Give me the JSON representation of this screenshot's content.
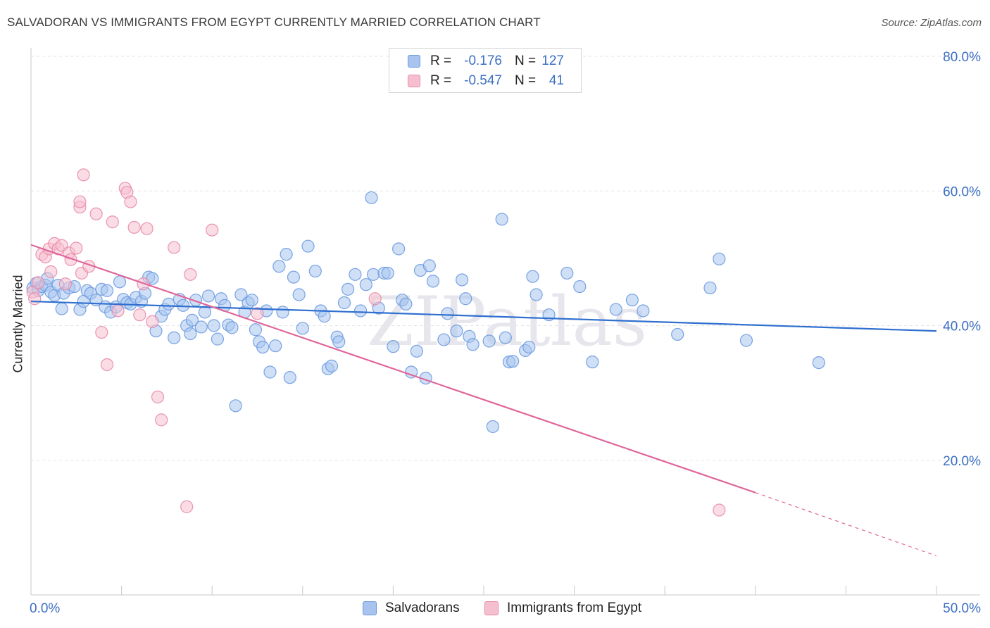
{
  "title": "SALVADORAN VS IMMIGRANTS FROM EGYPT CURRENTLY MARRIED CORRELATION CHART",
  "source": "Source: ZipAtlas.com",
  "watermark": "ZIPatlas",
  "legend_top": {
    "rows": [
      {
        "r_label": "R =",
        "r_value": "-0.176",
        "n_label": "N =",
        "n_value": "127",
        "color": "#a8c4ee",
        "border": "#6b9ae0"
      },
      {
        "r_label": "R =",
        "r_value": "-0.547",
        "n_label": "N =",
        "n_value": "41",
        "color": "#f6bfd0",
        "border": "#e88aa8"
      }
    ]
  },
  "legend_bottom": [
    {
      "label": "Salvadorans",
      "color": "#a8c4ee",
      "border": "#6b9ae0"
    },
    {
      "label": "Immigrants from Egypt",
      "color": "#f6bfd0",
      "border": "#e88aa8"
    }
  ],
  "chart_data": {
    "type": "scatter",
    "xlabel": "",
    "ylabel": "Currently Married",
    "xlim": [
      0,
      50
    ],
    "ylim": [
      0,
      80
    ],
    "x_tick_labels": [
      {
        "value": 0,
        "label": "0.0%"
      },
      {
        "value": 50,
        "label": "50.0%"
      }
    ],
    "y_tick_labels": [
      {
        "value": 20,
        "label": "20.0%"
      },
      {
        "value": 40,
        "label": "40.0%"
      },
      {
        "value": 60,
        "label": "60.0%"
      },
      {
        "value": 80,
        "label": "80.0%"
      }
    ],
    "grid": true,
    "legend": "top-center",
    "colors": {
      "blue_point": "#a8c4ee",
      "blue_edge": "#6b9ae0",
      "blue_line": "#2f6fcf",
      "pink_point": "#f6bfd0",
      "pink_edge": "#e88aa8",
      "pink_line": "#e0679a",
      "tick_label": "#3b6fc4",
      "grid": "#e3e3e3"
    },
    "series": [
      {
        "name": "Salvadorans",
        "trend": {
          "x": [
            0,
            50
          ],
          "y": [
            43.6,
            39.2
          ],
          "dashed_from": null
        },
        "points": [
          [
            0.1,
            45.6
          ],
          [
            0.3,
            46.3
          ],
          [
            0.4,
            45.2
          ],
          [
            0.6,
            45.8
          ],
          [
            0.8,
            46.0
          ],
          [
            0.9,
            47.0
          ],
          [
            1.1,
            45.0
          ],
          [
            1.3,
            44.5
          ],
          [
            1.5,
            46.0
          ],
          [
            1.7,
            42.5
          ],
          [
            1.8,
            44.8
          ],
          [
            2.1,
            45.6
          ],
          [
            2.4,
            45.8
          ],
          [
            2.7,
            42.4
          ],
          [
            2.9,
            43.6
          ],
          [
            3.1,
            45.2
          ],
          [
            3.3,
            44.8
          ],
          [
            3.6,
            43.8
          ],
          [
            3.9,
            45.4
          ],
          [
            4.1,
            42.8
          ],
          [
            4.2,
            45.2
          ],
          [
            4.4,
            42.0
          ],
          [
            4.7,
            42.8
          ],
          [
            4.9,
            46.5
          ],
          [
            5.1,
            43.9
          ],
          [
            5.3,
            43.4
          ],
          [
            5.5,
            43.2
          ],
          [
            5.8,
            44.2
          ],
          [
            6.1,
            43.6
          ],
          [
            6.3,
            44.8
          ],
          [
            6.5,
            47.2
          ],
          [
            6.7,
            47.0
          ],
          [
            6.9,
            39.2
          ],
          [
            7.2,
            41.4
          ],
          [
            7.4,
            42.4
          ],
          [
            7.6,
            43.2
          ],
          [
            7.9,
            38.2
          ],
          [
            8.2,
            43.9
          ],
          [
            8.4,
            43.0
          ],
          [
            8.6,
            40.0
          ],
          [
            8.8,
            38.8
          ],
          [
            8.9,
            40.8
          ],
          [
            9.1,
            43.8
          ],
          [
            9.4,
            39.8
          ],
          [
            9.6,
            42.0
          ],
          [
            9.8,
            44.4
          ],
          [
            10.1,
            40.0
          ],
          [
            10.3,
            38.0
          ],
          [
            10.5,
            44.0
          ],
          [
            10.7,
            43.0
          ],
          [
            10.9,
            40.1
          ],
          [
            11.1,
            39.7
          ],
          [
            11.3,
            28.1
          ],
          [
            11.6,
            44.6
          ],
          [
            11.8,
            42.0
          ],
          [
            12.0,
            43.4
          ],
          [
            12.2,
            43.8
          ],
          [
            12.4,
            39.4
          ],
          [
            12.6,
            37.6
          ],
          [
            12.8,
            36.8
          ],
          [
            13.0,
            42.2
          ],
          [
            13.2,
            33.1
          ],
          [
            13.5,
            37.0
          ],
          [
            13.7,
            48.8
          ],
          [
            13.9,
            42.0
          ],
          [
            14.1,
            50.6
          ],
          [
            14.3,
            32.3
          ],
          [
            14.5,
            47.2
          ],
          [
            14.8,
            44.6
          ],
          [
            15.0,
            39.6
          ],
          [
            15.3,
            51.8
          ],
          [
            15.7,
            48.1
          ],
          [
            16.0,
            42.2
          ],
          [
            16.2,
            41.4
          ],
          [
            16.4,
            33.6
          ],
          [
            16.6,
            34.0
          ],
          [
            16.9,
            38.3
          ],
          [
            17.0,
            37.6
          ],
          [
            17.3,
            43.4
          ],
          [
            17.5,
            45.4
          ],
          [
            17.9,
            47.6
          ],
          [
            18.2,
            42.2
          ],
          [
            18.5,
            46.1
          ],
          [
            18.8,
            59.0
          ],
          [
            18.9,
            47.6
          ],
          [
            19.2,
            42.6
          ],
          [
            19.5,
            47.8
          ],
          [
            19.7,
            47.8
          ],
          [
            20.0,
            36.9
          ],
          [
            20.3,
            51.4
          ],
          [
            20.5,
            43.8
          ],
          [
            20.7,
            43.2
          ],
          [
            21.0,
            33.1
          ],
          [
            21.3,
            36.2
          ],
          [
            21.5,
            48.2
          ],
          [
            21.8,
            32.2
          ],
          [
            22.0,
            48.9
          ],
          [
            22.2,
            46.6
          ],
          [
            22.8,
            37.9
          ],
          [
            23.0,
            41.8
          ],
          [
            23.5,
            39.2
          ],
          [
            23.8,
            46.8
          ],
          [
            24.0,
            44.0
          ],
          [
            24.2,
            38.4
          ],
          [
            24.4,
            37.2
          ],
          [
            25.3,
            37.7
          ],
          [
            25.5,
            25.0
          ],
          [
            26.0,
            55.8
          ],
          [
            26.2,
            38.2
          ],
          [
            26.4,
            34.6
          ],
          [
            26.6,
            34.7
          ],
          [
            27.3,
            36.3
          ],
          [
            27.5,
            36.8
          ],
          [
            27.7,
            47.3
          ],
          [
            27.9,
            44.6
          ],
          [
            28.6,
            41.6
          ],
          [
            29.6,
            47.8
          ],
          [
            30.3,
            45.8
          ],
          [
            31.0,
            34.6
          ],
          [
            32.3,
            42.4
          ],
          [
            33.2,
            43.8
          ],
          [
            33.8,
            42.2
          ],
          [
            35.7,
            38.7
          ],
          [
            37.5,
            45.6
          ],
          [
            38.0,
            49.9
          ],
          [
            39.5,
            37.8
          ],
          [
            43.5,
            34.5
          ]
        ]
      },
      {
        "name": "Immigrants from Egypt",
        "trend": {
          "x": [
            0,
            40
          ],
          "y": [
            52.0,
            15.2
          ],
          "dashed_to": [
            50,
            5.8
          ]
        },
        "points": [
          [
            0.1,
            45.0
          ],
          [
            0.2,
            44.0
          ],
          [
            0.4,
            46.4
          ],
          [
            0.6,
            50.6
          ],
          [
            0.8,
            50.2
          ],
          [
            1.0,
            51.4
          ],
          [
            1.1,
            48.0
          ],
          [
            1.3,
            52.2
          ],
          [
            1.5,
            51.4
          ],
          [
            1.7,
            51.9
          ],
          [
            1.9,
            46.2
          ],
          [
            2.1,
            50.8
          ],
          [
            2.2,
            49.8
          ],
          [
            2.5,
            51.5
          ],
          [
            2.8,
            47.8
          ],
          [
            2.9,
            62.4
          ],
          [
            3.2,
            48.8
          ],
          [
            2.7,
            57.6
          ],
          [
            2.7,
            58.4
          ],
          [
            3.6,
            56.6
          ],
          [
            3.9,
            39.0
          ],
          [
            4.2,
            34.2
          ],
          [
            4.5,
            55.4
          ],
          [
            4.8,
            42.2
          ],
          [
            5.2,
            60.4
          ],
          [
            5.3,
            59.8
          ],
          [
            5.5,
            58.4
          ],
          [
            5.7,
            54.6
          ],
          [
            6.0,
            41.6
          ],
          [
            6.2,
            46.2
          ],
          [
            6.4,
            54.4
          ],
          [
            6.7,
            40.6
          ],
          [
            7.0,
            29.4
          ],
          [
            7.2,
            26.0
          ],
          [
            7.9,
            51.6
          ],
          [
            8.6,
            13.1
          ],
          [
            8.8,
            47.6
          ],
          [
            10.0,
            54.2
          ],
          [
            12.5,
            41.8
          ],
          [
            19.0,
            44.0
          ],
          [
            38.0,
            12.6
          ]
        ]
      }
    ]
  }
}
